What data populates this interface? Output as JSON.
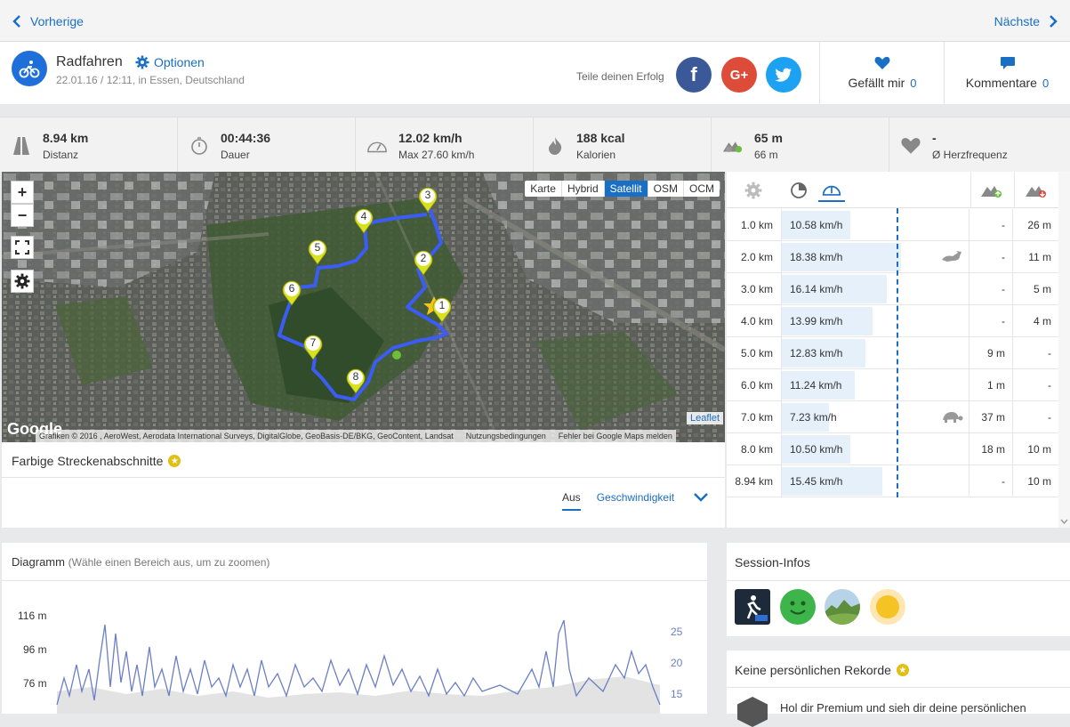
{
  "nav": {
    "prev": "Vorherige",
    "next": "Nächste"
  },
  "header": {
    "title": "Radfahren",
    "options": "Optionen",
    "subtitle": "22.01.16 / 12:11, in Essen, Deutschland",
    "share_label": "Teile deinen Erfolg",
    "likes_label": "Gefällt mir",
    "likes_count": "0",
    "comments_label": "Kommentare",
    "comments_count": "0",
    "colors": {
      "accent": "#1a6fc4",
      "facebook": "#3b5998",
      "google": "#dd4b39",
      "twitter": "#1da1f2"
    }
  },
  "stats": [
    {
      "value": "8.94 km",
      "label": "Distanz",
      "icon": "road-icon"
    },
    {
      "value": "00:44:36",
      "label": "Dauer",
      "icon": "stopwatch-icon"
    },
    {
      "value": "12.02 km/h",
      "label": "Max 27.60 km/h",
      "icon": "speedometer-icon"
    },
    {
      "value": "188 kcal",
      "label": "Kalorien",
      "icon": "flame-icon"
    },
    {
      "value": "65 m",
      "label": "66 m",
      "icon": "elevation-icon"
    },
    {
      "value": "-",
      "label": "Ø Herzfrequenz",
      "icon": "heart-icon"
    }
  ],
  "map": {
    "zoom_in": "+",
    "zoom_out": "−",
    "types": [
      "Karte",
      "Hybrid",
      "Satellit",
      "OSM",
      "OCM"
    ],
    "active_type": "Satellit",
    "markers": [
      "1",
      "2",
      "3",
      "4",
      "5",
      "6",
      "7",
      "8"
    ],
    "attribution": "Grafiken © 2016 , AeroWest, Aerodata International Surveys, DigitalGlobe, GeoBasis-DE/BKG, GeoContent, Landsat",
    "terms": "Nutzungsbedingungen",
    "report": "Fehler bei Google Maps melden",
    "leaflet": "Leaflet",
    "google": "Google"
  },
  "segments": {
    "title": "Farbige Streckenabschnitte",
    "tab_off": "Aus",
    "tab_speed": "Geschwindigkeit"
  },
  "splits": [
    {
      "km": "1.0 km",
      "speed": "10.58 km/h",
      "speed_value": 10.58,
      "up": "-",
      "down": "26 m",
      "animal": ""
    },
    {
      "km": "2.0 km",
      "speed": "18.38 km/h",
      "speed_value": 18.38,
      "up": "-",
      "down": "11 m",
      "animal": "rabbit-icon"
    },
    {
      "km": "3.0 km",
      "speed": "16.14 km/h",
      "speed_value": 16.14,
      "up": "-",
      "down": "5 m",
      "animal": ""
    },
    {
      "km": "4.0 km",
      "speed": "13.99 km/h",
      "speed_value": 13.99,
      "up": "-",
      "down": "4 m",
      "animal": ""
    },
    {
      "km": "5.0 km",
      "speed": "12.83 km/h",
      "speed_value": 12.83,
      "up": "9 m",
      "down": "-",
      "animal": ""
    },
    {
      "km": "6.0 km",
      "speed": "11.24 km/h",
      "speed_value": 11.24,
      "up": "1 m",
      "down": "-",
      "animal": ""
    },
    {
      "km": "7.0 km",
      "speed": "7.23 km/h",
      "speed_value": 7.23,
      "up": "37 m",
      "down": "-",
      "animal": "turtle-icon"
    },
    {
      "km": "8.0 km",
      "speed": "10.50 km/h",
      "speed_value": 10.5,
      "up": "18 m",
      "down": "10 m",
      "animal": ""
    },
    {
      "km": "8.94 km",
      "speed": "15.45 km/h",
      "speed_value": 15.45,
      "up": "-",
      "down": "10 m",
      "animal": ""
    }
  ],
  "diagram": {
    "title": "Diagramm",
    "hint": "(Wähle einen Bereich aus, um zu zoomen)",
    "y_left": [
      "116 m",
      "96 m",
      "76 m"
    ],
    "y_right": [
      "25",
      "20",
      "15"
    ]
  },
  "session": {
    "title": "Session-Infos",
    "icons": [
      "runtastic-pro-icon",
      "smiley-happy-icon",
      "landscape-icon",
      "sun-icon"
    ]
  },
  "records": {
    "title": "Keine persönlichen Rekorde",
    "text": "Hol dir Premium und sieh dir deine persönlichen"
  }
}
